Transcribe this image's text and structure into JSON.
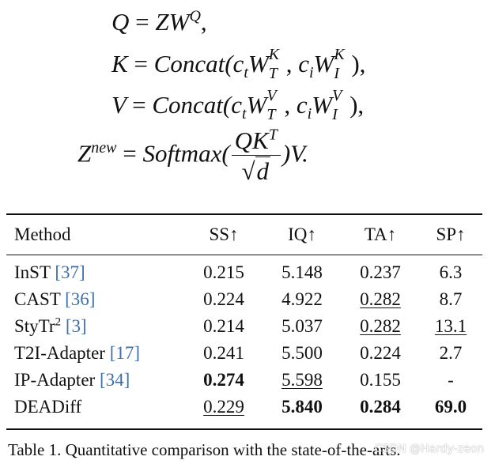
{
  "equations": {
    "q": {
      "lhs": "Q",
      "eq": "=",
      "rhs_var": "ZW",
      "rhs_sup": "Q",
      "tail": ","
    },
    "k": {
      "lhs": "K",
      "eq": "=",
      "func": "Concat(",
      "a_var": "c",
      "a_sub": "t",
      "a_w": "W",
      "a_sup": "K",
      "a_sub2": "T",
      "sep": ", ",
      "b_var": "c",
      "b_sub": "i",
      "b_w": "W",
      "b_sup": "K",
      "b_sub2": "I",
      "tail": "),"
    },
    "v": {
      "lhs": "V",
      "eq": "=",
      "func": "Concat(",
      "a_var": "c",
      "a_sub": "t",
      "a_w": "W",
      "a_sup": "V",
      "a_sub2": "T",
      "sep": ", ",
      "b_var": "c",
      "b_sub": "i",
      "b_w": "W",
      "b_sup": "V",
      "b_sub2": "I",
      "tail": "),"
    },
    "z": {
      "lhs": "Z",
      "lhs_sup": "new",
      "eq": "=",
      "func": "Softmax(",
      "num": "QK",
      "num_sup": "T",
      "sqrt": "√",
      "den": "d",
      "tail": ")V."
    }
  },
  "table": {
    "headers": {
      "method": "Method",
      "ss": "SS↑",
      "iq": "IQ↑",
      "ta": "TA↑",
      "sp": "SP↑"
    },
    "rows": [
      {
        "name": "InST",
        "ref": "[37]",
        "ss": "0.215",
        "iq": "5.148",
        "ta": "0.237",
        "sp": "6.3"
      },
      {
        "name": "CAST",
        "ref": "[36]",
        "ss": "0.224",
        "iq": "4.922",
        "ta": "0.282",
        "sp": "8.7"
      },
      {
        "name": "StyTr",
        "name_sup": "2",
        "ref": "[3]",
        "ss": "0.214",
        "iq": "5.037",
        "ta": "0.282",
        "sp": "13.1"
      },
      {
        "name": "T2I-Adapter",
        "ref": "[17]",
        "ss": "0.241",
        "iq": "5.500",
        "ta": "0.224",
        "sp": "2.7"
      },
      {
        "name": "IP-Adapter",
        "ref": "[34]",
        "ss": "0.274",
        "iq": "5.598",
        "ta": "0.155",
        "sp": "-"
      },
      {
        "name": "DEADiff",
        "ref": "",
        "ss": "0.229",
        "iq": "5.840",
        "ta": "0.284",
        "sp": "69.0"
      }
    ]
  },
  "caption": "Table 1. Quantitative comparison with the state-of-the-arts.",
  "watermark": "CSDN @Hardy-zeon"
}
